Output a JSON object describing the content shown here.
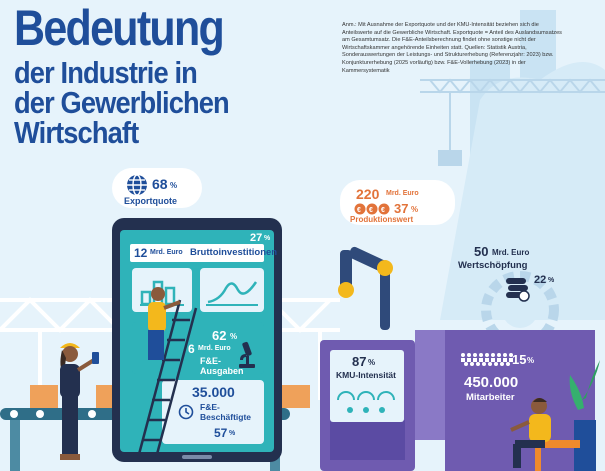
{
  "title": {
    "line1": "Bedeutung",
    "line2": "der Industrie in",
    "line3": "der Gewerblichen",
    "line4": "Wirtschaft"
  },
  "note": "Anm.: Mit Ausnahme der Exportquote und der KMU-Intensität beziehen sich die Anteilswerte auf die Gewerbliche Wirtschaft. Exportquote = Anteil des Auslandsumsatzes am Gesamtumsatz. Die F&E-Anteilsberechnung findet ohne sonstige nicht der Wirtschaftskammer angehörende Einheiten statt. Quellen: Statistik Austria, Sonderauswertungen der Leistungs- und Strukturerhebung (Referenzjahr: 2023) bzw. Konjunkturerhebung (2025 vorläufig) bzw. F&E-Vollerhebung (2023) in der Kammersystematik",
  "export": {
    "value": "68",
    "unit": "%",
    "label": "Exportquote"
  },
  "produktion": {
    "amount": "220",
    "unit": "Mrd. Euro",
    "share": "37",
    "share_unit": "%",
    "label": "Produktionswert"
  },
  "invest": {
    "amount": "12",
    "unit": "Mrd. Euro",
    "label": "Bruttoinvestitionen",
    "share": "27",
    "share_unit": "%"
  },
  "fe_ausgaben": {
    "share": "62",
    "share_unit": "%",
    "amount": "6",
    "unit": "Mrd. Euro",
    "label": "F&E-Ausgaben"
  },
  "fe_beschaeftigte": {
    "amount": "35.000",
    "label": "F&E-Beschäftigte",
    "share": "57",
    "share_unit": "%"
  },
  "wertschoepfung": {
    "amount": "50",
    "unit": "Mrd. Euro",
    "label": "Wertschöpfung",
    "share": "22",
    "share_unit": "%"
  },
  "kmu": {
    "value": "87",
    "unit": "%",
    "label": "KMU-Intensität"
  },
  "mitarbeiter": {
    "share": "15",
    "share_unit": "%",
    "amount": "450.000",
    "label": "Mitarbeiter"
  },
  "colors": {
    "navy": "#1f4e9a",
    "orange": "#e2733a",
    "teal": "#2fb3b9",
    "purple": "#5b4ba3",
    "yellow": "#f3b81c"
  }
}
